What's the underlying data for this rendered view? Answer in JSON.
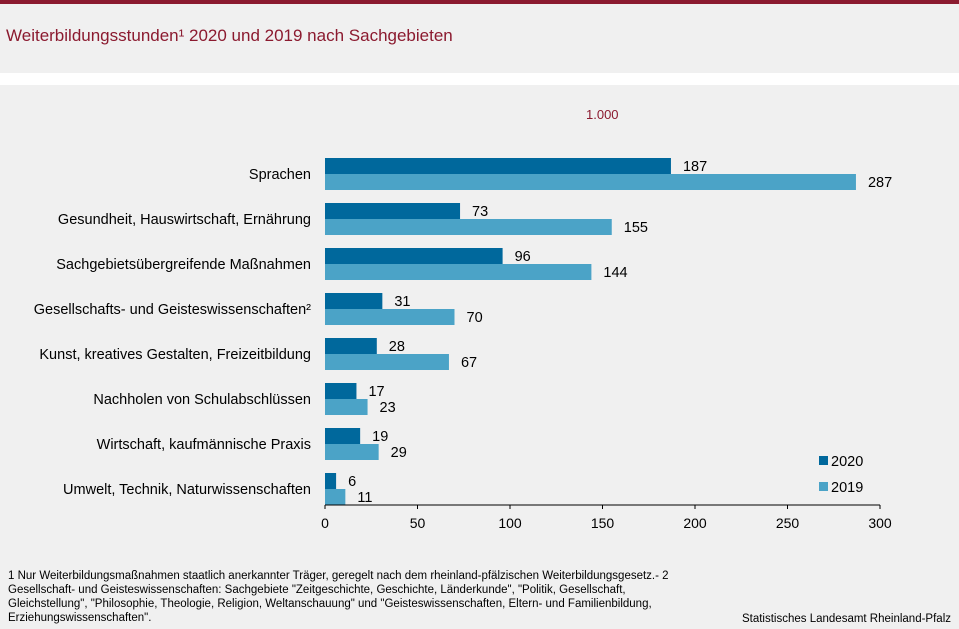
{
  "title": "Weiterbildungsstunden¹ 2020 und 2019 nach Sachgebieten",
  "unit_label": "1.000",
  "chart_data": {
    "type": "bar",
    "orientation": "horizontal",
    "categories": [
      "Sprachen",
      "Gesundheit, Hauswirtschaft, Ernährung",
      "Sachgebietsübergreifende Maßnahmen",
      "Gesellschafts- und Geisteswissenschaften²",
      "Kunst, kreatives Gestalten, Freizeitbildung",
      "Nachholen von Schulabschlüssen",
      "Wirtschaft, kaufmännische Praxis",
      "Umwelt, Technik, Naturwissenschaften"
    ],
    "series": [
      {
        "name": "2020",
        "color": "#00689c",
        "values": [
          187,
          73,
          96,
          31,
          28,
          17,
          19,
          6
        ]
      },
      {
        "name": "2019",
        "color": "#4ba3c7",
        "values": [
          287,
          155,
          144,
          70,
          67,
          23,
          29,
          11
        ]
      }
    ],
    "xlim": [
      0,
      300
    ],
    "xticks": [
      0,
      50,
      100,
      150,
      200,
      250,
      300
    ],
    "legend_position": "bottom-right"
  },
  "footnote": "1 Nur Weiterbildungsmaßnahmen  staatlich anerkannter Träger,  geregelt  nach dem rheinland-pfälzischen Weiterbildungsgesetz.- 2 Gesellschaft- und Geisteswissenschaften: Sachgebiete \"Zeitgeschichte, Geschichte, Länderkunde\",  \"Politik, Gesellschaft, Gleichstellung\",  \"Philosophie, Theologie,  Religion,  Weltanschauung\"  und \"Geisteswissenschaften, Eltern- und Familienbildung,  Erziehungswissenschaften\".",
  "source": "Statistisches Landesamt Rheinland-Pfalz"
}
